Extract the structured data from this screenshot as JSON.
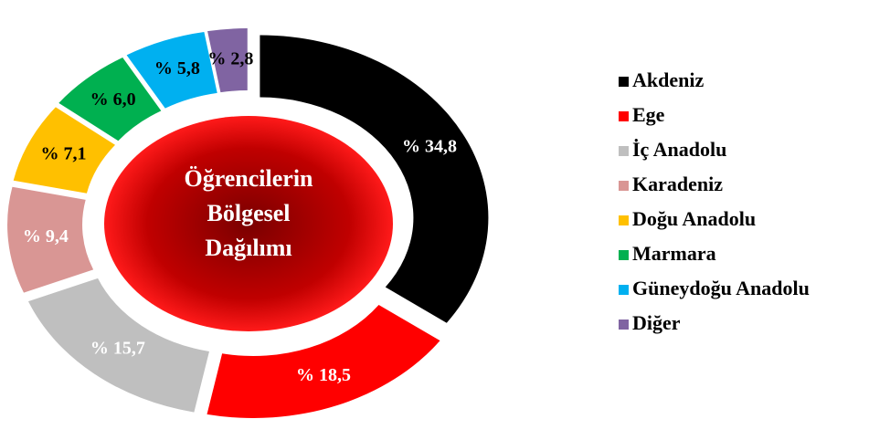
{
  "chart_data": {
    "type": "donut",
    "title": [
      "Öğrencilerin",
      "Bölgesel",
      "Dağılımı"
    ],
    "categories": [
      "Akdeniz",
      "Ege",
      "İç Anadolu",
      "Karadeniz",
      "Doğu Anadolu",
      "Marmara",
      "Güneydoğu Anadolu",
      "Diğer"
    ],
    "values": [
      34.8,
      18.5,
      15.7,
      9.4,
      7.1,
      6.0,
      5.8,
      2.8
    ],
    "value_labels": [
      "% 34,8",
      "% 18,5",
      "% 15,7",
      "% 9,4",
      "% 7,1",
      "% 6,0",
      "% 5,8",
      "% 2,8"
    ],
    "colors": [
      "#000000",
      "#ff0000",
      "#bfbfbf",
      "#d99694",
      "#ffc000",
      "#00b050",
      "#00b0f0",
      "#8064a2"
    ],
    "legend": "right"
  }
}
